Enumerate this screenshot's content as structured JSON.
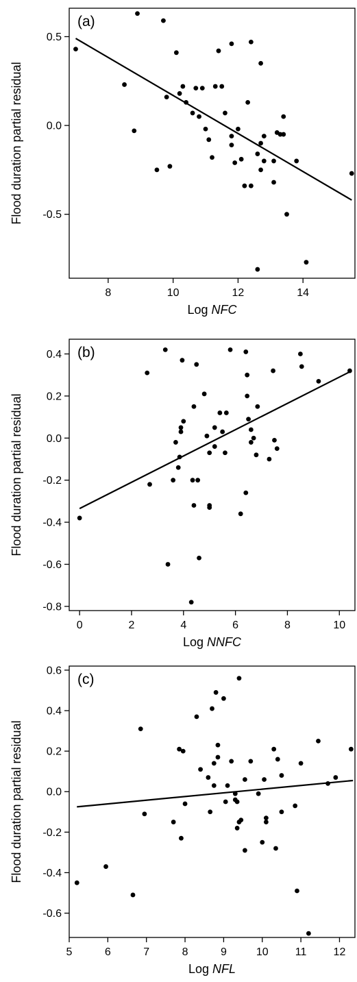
{
  "chart_data": [
    {
      "type": "scatter",
      "panel_label": "(a)",
      "xlabel_prefix": "Log ",
      "xlabel_italic": "NFC",
      "ylabel": "Flood duration partial residual",
      "xlim": [
        6.8,
        15.6
      ],
      "ylim": [
        -0.86,
        0.66
      ],
      "xticks": [
        8,
        10,
        12,
        14
      ],
      "xtick_labels": [
        "8",
        "10",
        "12",
        "14"
      ],
      "yticks": [
        -0.5,
        0.0,
        0.5
      ],
      "ytick_labels": [
        "-0.5",
        "0.0",
        "0.5"
      ],
      "fit_line": {
        "x": [
          7.0,
          15.5
        ],
        "y": [
          0.49,
          -0.42
        ]
      },
      "points": [
        {
          "x": 7.0,
          "y": 0.43
        },
        {
          "x": 8.5,
          "y": 0.23
        },
        {
          "x": 8.8,
          "y": -0.03
        },
        {
          "x": 8.9,
          "y": 0.63
        },
        {
          "x": 9.5,
          "y": -0.25
        },
        {
          "x": 9.7,
          "y": 0.59
        },
        {
          "x": 9.8,
          "y": 0.16
        },
        {
          "x": 9.9,
          "y": -0.23
        },
        {
          "x": 10.1,
          "y": 0.41
        },
        {
          "x": 10.2,
          "y": 0.18
        },
        {
          "x": 10.3,
          "y": 0.22
        },
        {
          "x": 10.4,
          "y": 0.13
        },
        {
          "x": 10.6,
          "y": 0.07
        },
        {
          "x": 10.7,
          "y": 0.21
        },
        {
          "x": 10.8,
          "y": 0.05
        },
        {
          "x": 10.9,
          "y": 0.21
        },
        {
          "x": 11.0,
          "y": -0.02
        },
        {
          "x": 11.1,
          "y": -0.08
        },
        {
          "x": 11.2,
          "y": -0.18
        },
        {
          "x": 11.3,
          "y": 0.22
        },
        {
          "x": 11.4,
          "y": 0.42
        },
        {
          "x": 11.5,
          "y": 0.22
        },
        {
          "x": 11.6,
          "y": 0.07
        },
        {
          "x": 11.8,
          "y": 0.46
        },
        {
          "x": 11.8,
          "y": -0.06
        },
        {
          "x": 11.8,
          "y": -0.11
        },
        {
          "x": 11.9,
          "y": -0.21
        },
        {
          "x": 12.0,
          "y": -0.02
        },
        {
          "x": 12.1,
          "y": -0.19
        },
        {
          "x": 12.2,
          "y": -0.34
        },
        {
          "x": 12.3,
          "y": 0.13
        },
        {
          "x": 12.4,
          "y": 0.47
        },
        {
          "x": 12.4,
          "y": -0.34
        },
        {
          "x": 12.6,
          "y": -0.16
        },
        {
          "x": 12.7,
          "y": 0.35
        },
        {
          "x": 12.7,
          "y": -0.25
        },
        {
          "x": 12.7,
          "y": -0.1
        },
        {
          "x": 12.8,
          "y": -0.06
        },
        {
          "x": 12.8,
          "y": -0.2
        },
        {
          "x": 12.6,
          "y": -0.81
        },
        {
          "x": 13.1,
          "y": -0.2
        },
        {
          "x": 13.1,
          "y": -0.32
        },
        {
          "x": 13.2,
          "y": -0.04
        },
        {
          "x": 13.3,
          "y": -0.05
        },
        {
          "x": 13.4,
          "y": 0.05
        },
        {
          "x": 13.4,
          "y": -0.05
        },
        {
          "x": 13.5,
          "y": -0.5
        },
        {
          "x": 13.8,
          "y": -0.2
        },
        {
          "x": 14.1,
          "y": -0.77
        },
        {
          "x": 15.5,
          "y": -0.27
        }
      ]
    },
    {
      "type": "scatter",
      "panel_label": "(b)",
      "xlabel_prefix": "Log ",
      "xlabel_italic": "NNFC",
      "ylabel": "Flood duration partial residual",
      "xlim": [
        -0.4,
        10.6
      ],
      "ylim": [
        -0.82,
        0.47
      ],
      "xticks": [
        0,
        2,
        4,
        6,
        8,
        10
      ],
      "xtick_labels": [
        "0",
        "2",
        "4",
        "6",
        "8",
        "10"
      ],
      "yticks": [
        -0.8,
        -0.6,
        -0.4,
        -0.2,
        0.0,
        0.2,
        0.4
      ],
      "ytick_labels": [
        "-0.8",
        "-0.6",
        "-0.4",
        "-0.2",
        "0.0",
        "0.2",
        "0.4"
      ],
      "fit_line": {
        "x": [
          0.0,
          10.4
        ],
        "y": [
          -0.335,
          0.315
        ]
      },
      "points": [
        {
          "x": 0.0,
          "y": -0.38
        },
        {
          "x": 2.6,
          "y": 0.31
        },
        {
          "x": 2.7,
          "y": -0.22
        },
        {
          "x": 3.3,
          "y": 0.42
        },
        {
          "x": 3.4,
          "y": -0.6
        },
        {
          "x": 3.6,
          "y": -0.2
        },
        {
          "x": 3.7,
          "y": -0.02
        },
        {
          "x": 3.8,
          "y": -0.14
        },
        {
          "x": 3.85,
          "y": -0.09
        },
        {
          "x": 3.9,
          "y": 0.03
        },
        {
          "x": 3.9,
          "y": 0.05
        },
        {
          "x": 3.95,
          "y": 0.37
        },
        {
          "x": 4.0,
          "y": 0.08
        },
        {
          "x": 4.3,
          "y": -0.78
        },
        {
          "x": 4.35,
          "y": -0.2
        },
        {
          "x": 4.4,
          "y": 0.15
        },
        {
          "x": 4.4,
          "y": -0.32
        },
        {
          "x": 4.5,
          "y": 0.35
        },
        {
          "x": 4.55,
          "y": -0.2
        },
        {
          "x": 4.6,
          "y": -0.57
        },
        {
          "x": 4.8,
          "y": 0.21
        },
        {
          "x": 4.9,
          "y": 0.01
        },
        {
          "x": 5.0,
          "y": -0.07
        },
        {
          "x": 5.0,
          "y": -0.32
        },
        {
          "x": 5.0,
          "y": -0.33
        },
        {
          "x": 5.2,
          "y": 0.05
        },
        {
          "x": 5.2,
          "y": -0.04
        },
        {
          "x": 5.4,
          "y": 0.12
        },
        {
          "x": 5.5,
          "y": 0.03
        },
        {
          "x": 5.6,
          "y": -0.07
        },
        {
          "x": 5.65,
          "y": 0.12
        },
        {
          "x": 5.8,
          "y": 0.42
        },
        {
          "x": 6.2,
          "y": -0.36
        },
        {
          "x": 6.4,
          "y": 0.41
        },
        {
          "x": 6.45,
          "y": 0.3
        },
        {
          "x": 6.45,
          "y": 0.2
        },
        {
          "x": 6.4,
          "y": -0.26
        },
        {
          "x": 6.5,
          "y": 0.09
        },
        {
          "x": 6.6,
          "y": 0.04
        },
        {
          "x": 6.6,
          "y": -0.02
        },
        {
          "x": 6.7,
          "y": 0.0
        },
        {
          "x": 6.8,
          "y": -0.08
        },
        {
          "x": 6.85,
          "y": 0.15
        },
        {
          "x": 7.3,
          "y": -0.1
        },
        {
          "x": 7.45,
          "y": 0.32
        },
        {
          "x": 7.5,
          "y": -0.01
        },
        {
          "x": 7.6,
          "y": -0.05
        },
        {
          "x": 8.5,
          "y": 0.4
        },
        {
          "x": 8.55,
          "y": 0.34
        },
        {
          "x": 9.2,
          "y": 0.27
        },
        {
          "x": 10.4,
          "y": 0.32
        }
      ]
    },
    {
      "type": "scatter",
      "panel_label": "(c)",
      "xlabel_prefix": "Log ",
      "xlabel_italic": "NFL",
      "ylabel": "Flood duration partial residual",
      "xlim": [
        5.0,
        12.4
      ],
      "ylim": [
        -0.72,
        0.62
      ],
      "xticks": [
        5,
        6,
        7,
        8,
        9,
        10,
        11,
        12
      ],
      "xtick_labels": [
        "5",
        "6",
        "7",
        "8",
        "9",
        "10",
        "11",
        "12"
      ],
      "yticks": [
        -0.6,
        -0.4,
        -0.2,
        0.0,
        0.2,
        0.4,
        0.6
      ],
      "ytick_labels": [
        "-0.6",
        "-0.4",
        "-0.2",
        "0.0",
        "0.2",
        "0.4",
        "0.6"
      ],
      "fit_line": {
        "x": [
          5.2,
          12.35
        ],
        "y": [
          -0.075,
          0.055
        ]
      },
      "points": [
        {
          "x": 5.2,
          "y": -0.45
        },
        {
          "x": 5.95,
          "y": -0.37
        },
        {
          "x": 6.65,
          "y": -0.51
        },
        {
          "x": 6.85,
          "y": 0.31
        },
        {
          "x": 6.95,
          "y": -0.11
        },
        {
          "x": 7.7,
          "y": -0.15
        },
        {
          "x": 7.85,
          "y": 0.21
        },
        {
          "x": 7.9,
          "y": -0.23
        },
        {
          "x": 7.95,
          "y": 0.2
        },
        {
          "x": 8.0,
          "y": -0.06
        },
        {
          "x": 8.3,
          "y": 0.37
        },
        {
          "x": 8.4,
          "y": 0.11
        },
        {
          "x": 8.6,
          "y": 0.07
        },
        {
          "x": 8.65,
          "y": -0.1
        },
        {
          "x": 8.7,
          "y": 0.41
        },
        {
          "x": 8.75,
          "y": 0.14
        },
        {
          "x": 8.75,
          "y": 0.03
        },
        {
          "x": 8.8,
          "y": 0.49
        },
        {
          "x": 8.85,
          "y": 0.23
        },
        {
          "x": 8.85,
          "y": 0.17
        },
        {
          "x": 9.0,
          "y": 0.46
        },
        {
          "x": 9.05,
          "y": -0.05
        },
        {
          "x": 9.1,
          "y": 0.03
        },
        {
          "x": 9.2,
          "y": 0.15
        },
        {
          "x": 9.3,
          "y": -0.01
        },
        {
          "x": 9.3,
          "y": -0.04
        },
        {
          "x": 9.35,
          "y": -0.05
        },
        {
          "x": 9.35,
          "y": -0.18
        },
        {
          "x": 9.4,
          "y": 0.56
        },
        {
          "x": 9.4,
          "y": -0.15
        },
        {
          "x": 9.45,
          "y": -0.14
        },
        {
          "x": 9.55,
          "y": 0.06
        },
        {
          "x": 9.55,
          "y": -0.29
        },
        {
          "x": 9.7,
          "y": 0.15
        },
        {
          "x": 9.9,
          "y": -0.01
        },
        {
          "x": 10.0,
          "y": -0.25
        },
        {
          "x": 10.05,
          "y": 0.06
        },
        {
          "x": 10.1,
          "y": -0.13
        },
        {
          "x": 10.1,
          "y": -0.15
        },
        {
          "x": 10.3,
          "y": 0.21
        },
        {
          "x": 10.35,
          "y": -0.28
        },
        {
          "x": 10.4,
          "y": 0.16
        },
        {
          "x": 10.5,
          "y": 0.08
        },
        {
          "x": 10.5,
          "y": -0.1
        },
        {
          "x": 10.85,
          "y": -0.07
        },
        {
          "x": 10.9,
          "y": -0.49
        },
        {
          "x": 11.0,
          "y": 0.14
        },
        {
          "x": 11.2,
          "y": -0.7
        },
        {
          "x": 11.45,
          "y": 0.25
        },
        {
          "x": 11.7,
          "y": 0.04
        },
        {
          "x": 11.9,
          "y": 0.07
        },
        {
          "x": 12.3,
          "y": 0.21
        }
      ]
    }
  ]
}
